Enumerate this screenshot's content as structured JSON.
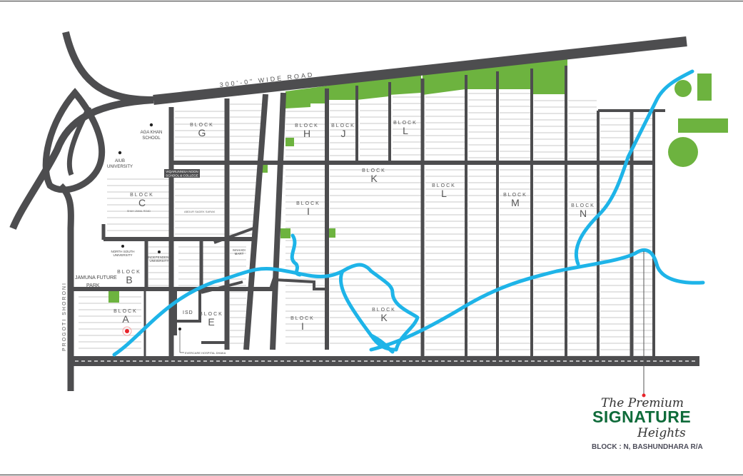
{
  "roads": {
    "top": "300'-0\" WIDE ROAD",
    "left": "PROGOTI SHORONI",
    "abdur_sadek": "ABDUR SADEK SARAK",
    "minor_c": "SHAH JAMAL ROAD"
  },
  "blocks": [
    {
      "word": "BLOCK",
      "letter": "G"
    },
    {
      "word": "BLOCK",
      "letter": "H"
    },
    {
      "word": "BLOCK",
      "letter": "J"
    },
    {
      "word": "BLOCK",
      "letter": "L"
    },
    {
      "word": "BLOCK",
      "letter": "K"
    },
    {
      "word": "BLOCK",
      "letter": "L"
    },
    {
      "word": "BLOCK",
      "letter": "M"
    },
    {
      "word": "BLOCK",
      "letter": "N"
    },
    {
      "word": "BLOCK",
      "letter": "I"
    },
    {
      "word": "BLOCK",
      "letter": "C"
    },
    {
      "word": "BLOCK",
      "letter": "B"
    },
    {
      "word": "BLOCK",
      "letter": "A"
    },
    {
      "word": "BLOCK",
      "letter": "E"
    },
    {
      "word": "BLOCK",
      "letter": "I"
    },
    {
      "word": "BLOCK",
      "letter": "K"
    }
  ],
  "places": {
    "aga_khan": [
      "AGA KHAN",
      "SCHOOL"
    ],
    "aiub": [
      "AIUB",
      "UNIVERSITY"
    ],
    "viqarunnisa": [
      "VIQARUNNISA NOON",
      "SCHOOL & COLLEGE"
    ],
    "nsu": [
      "NORTH SOUTH",
      "UNIVERSITY"
    ],
    "iub": [
      "INDEPENDENT",
      "UNIVERSITY"
    ],
    "mahadi": [
      "MAHADI",
      "MART"
    ],
    "jamuna": [
      "JAMUNA FUTURE",
      "PARK"
    ],
    "isd": "ISD",
    "hospital": "EVERCARE HOSPITAL DHAKA"
  },
  "logo": {
    "line1": "The Premium",
    "line2": "SIGNATURE",
    "line3": "Heights",
    "location": "BLOCK : N, BASHUNDHARA R/A"
  },
  "colors": {
    "road": "#4d4d4f",
    "river": "#1eb4e8",
    "park": "#6db33f",
    "brand": "#0f6b3a",
    "marker": "#e8232a"
  }
}
